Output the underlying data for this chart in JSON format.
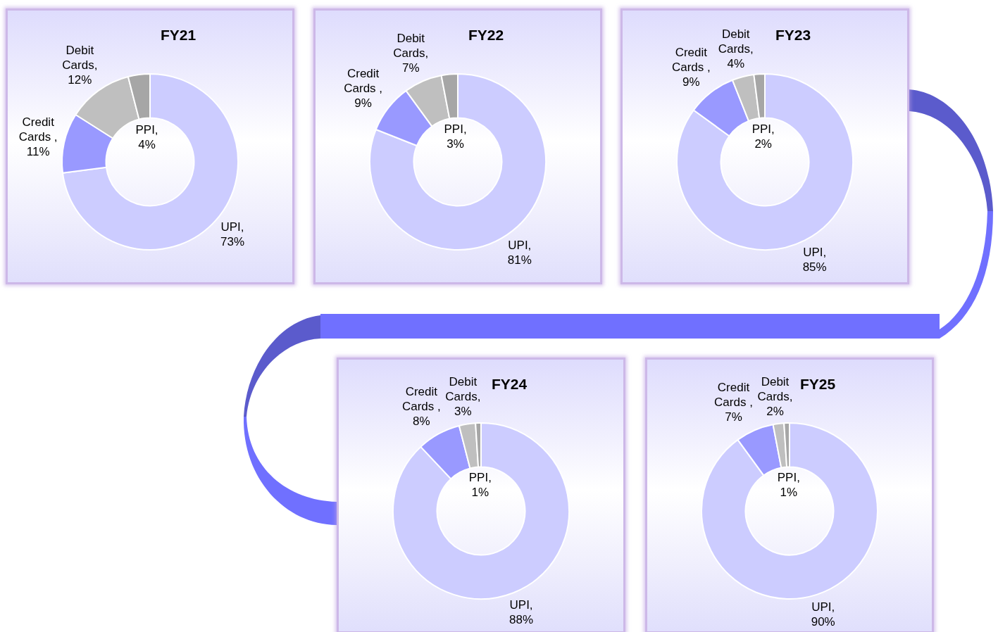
{
  "chart_data": [
    {
      "type": "donut",
      "title": "FY21",
      "categories": [
        null,
        null,
        null,
        null
      ],
      "values": [
        73,
        11,
        12,
        4
      ],
      "colors": [
        "#ccccff",
        "#9999ff",
        "#bfbfbf",
        "#a6a6a6"
      ],
      "value_labels": [
        "UPI, 73%",
        "Credit Cards , 11%",
        "Debit Cards, 12%",
        "PPI, 4%"
      ]
    },
    {
      "type": "donut",
      "title": "FY22",
      "categories": [
        null,
        null,
        null,
        null
      ],
      "values": [
        81,
        9,
        7,
        3
      ],
      "colors": [
        "#ccccff",
        "#9999ff",
        "#bfbfbf",
        "#a6a6a6"
      ],
      "value_labels": [
        "UPI, 81%",
        "Credit Cards , 9%",
        "Debit Cards, 7%",
        "PPI, 3%"
      ]
    },
    {
      "type": "donut",
      "title": "FY23",
      "categories": [
        null,
        null,
        null,
        null
      ],
      "values": [
        85,
        9,
        4,
        2
      ],
      "colors": [
        "#ccccff",
        "#9999ff",
        "#bfbfbf",
        "#a6a6a6"
      ],
      "value_labels": [
        "UPI, 85%",
        "Credit Cards , 9%",
        "Debit Cards, 4%",
        "PPI, 2%"
      ]
    },
    {
      "type": "donut",
      "title": "FY24",
      "categories": [
        null,
        null,
        null,
        null
      ],
      "values": [
        88,
        8,
        3,
        1
      ],
      "colors": [
        "#ccccff",
        "#9999ff",
        "#bfbfbf",
        "#a6a6a6"
      ],
      "value_labels": [
        "UPI, 88%",
        "Credit Cards , 8%",
        "Debit Cards, 3%",
        "PPI, 1%"
      ]
    },
    {
      "type": "donut",
      "title": "FY25",
      "categories": [
        null,
        null,
        null,
        null
      ],
      "values": [
        90,
        7,
        2,
        1
      ],
      "colors": [
        "#ccccff",
        "#9999ff",
        "#bfbfbf",
        "#a6a6a6"
      ],
      "value_labels": [
        "UPI, 90%",
        "Credit Cards , 7%",
        "Debit Cards, 2%",
        "PPI, 1%"
      ]
    }
  ]
}
